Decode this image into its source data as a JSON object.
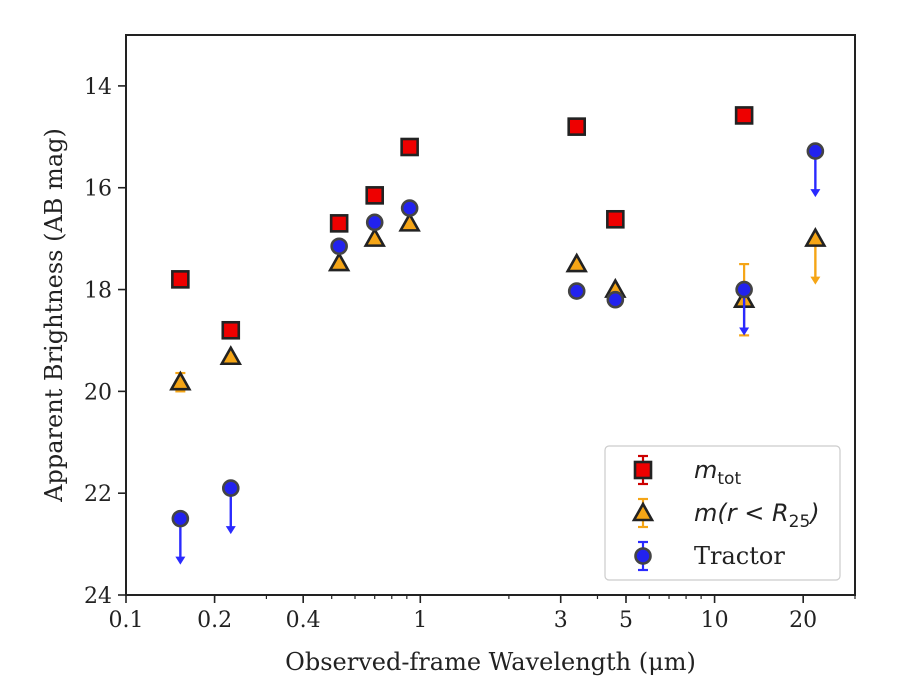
{
  "chart_data": {
    "type": "scatter",
    "xlabel": "Observed-frame Wavelength (μm)",
    "ylabel": "Apparent Brightness (AB mag)",
    "x_scale": "log",
    "xlim": [
      0.1,
      30
    ],
    "ylim": [
      24,
      13
    ],
    "y_inverted": true,
    "x_ticks": [
      {
        "value": 0.1,
        "label": "0.1"
      },
      {
        "value": 0.2,
        "label": "0.2"
      },
      {
        "value": 0.4,
        "label": "0.4"
      },
      {
        "value": 1,
        "label": "1"
      },
      {
        "value": 3,
        "label": "3"
      },
      {
        "value": 5,
        "label": "5"
      },
      {
        "value": 10,
        "label": "10"
      },
      {
        "value": 20,
        "label": "20"
      }
    ],
    "y_ticks": [
      {
        "value": 14,
        "label": "14"
      },
      {
        "value": 16,
        "label": "16"
      },
      {
        "value": 18,
        "label": "18"
      },
      {
        "value": 20,
        "label": "20"
      },
      {
        "value": 22,
        "label": "22"
      },
      {
        "value": 24,
        "label": "24"
      }
    ],
    "grid": false,
    "legend_position": "lower-right",
    "series": [
      {
        "name": "m_tot",
        "legend_main": "m",
        "legend_sub": "tot",
        "marker": "square",
        "fill": "#ee0000",
        "edge": "#222222",
        "errcolor": "#cc0000",
        "points": [
          {
            "x": 0.153,
            "y": 17.8
          },
          {
            "x": 0.227,
            "y": 18.8
          },
          {
            "x": 0.53,
            "y": 16.7
          },
          {
            "x": 0.7,
            "y": 16.15
          },
          {
            "x": 0.92,
            "y": 15.2
          },
          {
            "x": 3.4,
            "y": 14.8
          },
          {
            "x": 4.6,
            "y": 16.62
          },
          {
            "x": 12.6,
            "y": 14.58
          }
        ]
      },
      {
        "name": "m(r < R25)",
        "legend_main": "m(r < R",
        "legend_sub": "25",
        "legend_tail": ")",
        "marker": "triangle",
        "fill": "#f5a516",
        "edge": "#222222",
        "errcolor": "#f5a516",
        "points": [
          {
            "x": 0.153,
            "y": 19.82,
            "yerr": 0.18
          },
          {
            "x": 0.227,
            "y": 19.32
          },
          {
            "x": 0.53,
            "y": 17.48
          },
          {
            "x": 0.7,
            "y": 17.0
          },
          {
            "x": 0.92,
            "y": 16.7
          },
          {
            "x": 3.4,
            "y": 17.5
          },
          {
            "x": 4.6,
            "y": 18.0
          },
          {
            "x": 12.6,
            "y": 18.2,
            "yerr": 0.7
          },
          {
            "x": 22,
            "y": 17.0,
            "upper_limit": true
          }
        ]
      },
      {
        "name": "Tractor",
        "legend_main": "Tractor",
        "marker": "circle",
        "fill": "#2222ee",
        "edge": "#444444",
        "errcolor": "#2a2aff",
        "points": [
          {
            "x": 0.153,
            "y": 22.5,
            "upper_limit": true
          },
          {
            "x": 0.227,
            "y": 21.9,
            "upper_limit": true
          },
          {
            "x": 0.53,
            "y": 17.15
          },
          {
            "x": 0.7,
            "y": 16.68
          },
          {
            "x": 0.92,
            "y": 16.4
          },
          {
            "x": 3.4,
            "y": 18.03
          },
          {
            "x": 4.6,
            "y": 18.2
          },
          {
            "x": 12.6,
            "y": 18.0,
            "upper_limit": true
          },
          {
            "x": 22,
            "y": 15.28,
            "upper_limit": true
          }
        ]
      }
    ]
  }
}
